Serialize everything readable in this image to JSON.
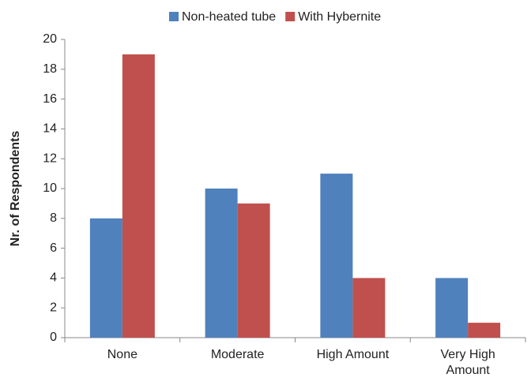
{
  "chart_data": {
    "type": "bar",
    "categories": [
      "None",
      "Moderate",
      "High Amount",
      "Very High Amount"
    ],
    "series": [
      {
        "name": "Non-heated tube",
        "color": "#4f81bd",
        "values": [
          8,
          10,
          11,
          4
        ]
      },
      {
        "name": "With Hybernite",
        "color": "#c0504d",
        "values": [
          19,
          9,
          4,
          1
        ]
      }
    ],
    "y_label": "Nr. of Respondents",
    "ylim": [
      0,
      20
    ],
    "yticks": [
      0,
      2,
      4,
      6,
      8,
      10,
      12,
      14,
      16,
      18,
      20
    ],
    "grid": false,
    "legend": "top"
  }
}
